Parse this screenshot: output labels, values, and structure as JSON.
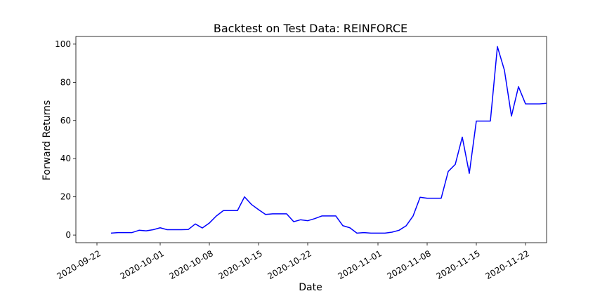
{
  "chart_data": {
    "type": "line",
    "title": "Backtest on Test Data: REINFORCE",
    "xlabel": "Date",
    "ylabel": "Forward Returns",
    "xlim": [
      "2020-09-19",
      "2020-11-25"
    ],
    "ylim": [
      -4,
      104
    ],
    "x_ticks": [
      "2020-09-22",
      "2020-10-01",
      "2020-10-08",
      "2020-10-15",
      "2020-10-22",
      "2020-11-01",
      "2020-11-08",
      "2020-11-15",
      "2020-11-22"
    ],
    "y_ticks": [
      0,
      20,
      40,
      60,
      80,
      100
    ],
    "grid": false,
    "series": [
      {
        "color": "#0000ff",
        "points": [
          [
            "2020-09-24",
            1.0
          ],
          [
            "2020-09-25",
            1.3
          ],
          [
            "2020-09-26",
            1.3
          ],
          [
            "2020-09-27",
            1.3
          ],
          [
            "2020-09-28",
            2.5
          ],
          [
            "2020-09-29",
            2.2
          ],
          [
            "2020-09-30",
            2.8
          ],
          [
            "2020-10-01",
            3.8
          ],
          [
            "2020-10-02",
            2.8
          ],
          [
            "2020-10-03",
            2.8
          ],
          [
            "2020-10-04",
            2.8
          ],
          [
            "2020-10-05",
            2.9
          ],
          [
            "2020-10-06",
            5.8
          ],
          [
            "2020-10-07",
            3.7
          ],
          [
            "2020-10-08",
            6.3
          ],
          [
            "2020-10-09",
            10.0
          ],
          [
            "2020-10-10",
            12.8
          ],
          [
            "2020-10-11",
            12.8
          ],
          [
            "2020-10-12",
            12.8
          ],
          [
            "2020-10-13",
            20.0
          ],
          [
            "2020-10-14",
            16.0
          ],
          [
            "2020-10-15",
            13.3
          ],
          [
            "2020-10-16",
            10.8
          ],
          [
            "2020-10-17",
            11.1
          ],
          [
            "2020-10-18",
            11.1
          ],
          [
            "2020-10-19",
            11.1
          ],
          [
            "2020-10-20",
            7.0
          ],
          [
            "2020-10-21",
            8.0
          ],
          [
            "2020-10-22",
            7.5
          ],
          [
            "2020-10-23",
            8.6
          ],
          [
            "2020-10-24",
            10.0
          ],
          [
            "2020-10-25",
            10.0
          ],
          [
            "2020-10-26",
            10.0
          ],
          [
            "2020-10-27",
            4.9
          ],
          [
            "2020-10-28",
            3.8
          ],
          [
            "2020-10-29",
            1.0
          ],
          [
            "2020-10-30",
            1.3
          ],
          [
            "2020-10-31",
            1.0
          ],
          [
            "2020-11-01",
            1.0
          ],
          [
            "2020-11-02",
            1.0
          ],
          [
            "2020-11-03",
            1.5
          ],
          [
            "2020-11-04",
            2.5
          ],
          [
            "2020-11-05",
            4.8
          ],
          [
            "2020-11-06",
            10.0
          ],
          [
            "2020-11-07",
            19.8
          ],
          [
            "2020-11-08",
            19.3
          ],
          [
            "2020-11-09",
            19.3
          ],
          [
            "2020-11-10",
            19.3
          ],
          [
            "2020-11-11",
            33.3
          ],
          [
            "2020-11-12",
            37.0
          ],
          [
            "2020-11-13",
            51.3
          ],
          [
            "2020-11-14",
            32.3
          ],
          [
            "2020-11-15",
            59.7
          ],
          [
            "2020-11-16",
            59.7
          ],
          [
            "2020-11-17",
            59.7
          ],
          [
            "2020-11-18",
            98.7
          ],
          [
            "2020-11-19",
            86.3
          ],
          [
            "2020-11-20",
            62.3
          ],
          [
            "2020-11-21",
            77.7
          ],
          [
            "2020-11-22",
            68.7
          ],
          [
            "2020-11-23",
            68.7
          ],
          [
            "2020-11-24",
            68.7
          ],
          [
            "2020-11-25",
            69.0
          ]
        ]
      }
    ]
  }
}
